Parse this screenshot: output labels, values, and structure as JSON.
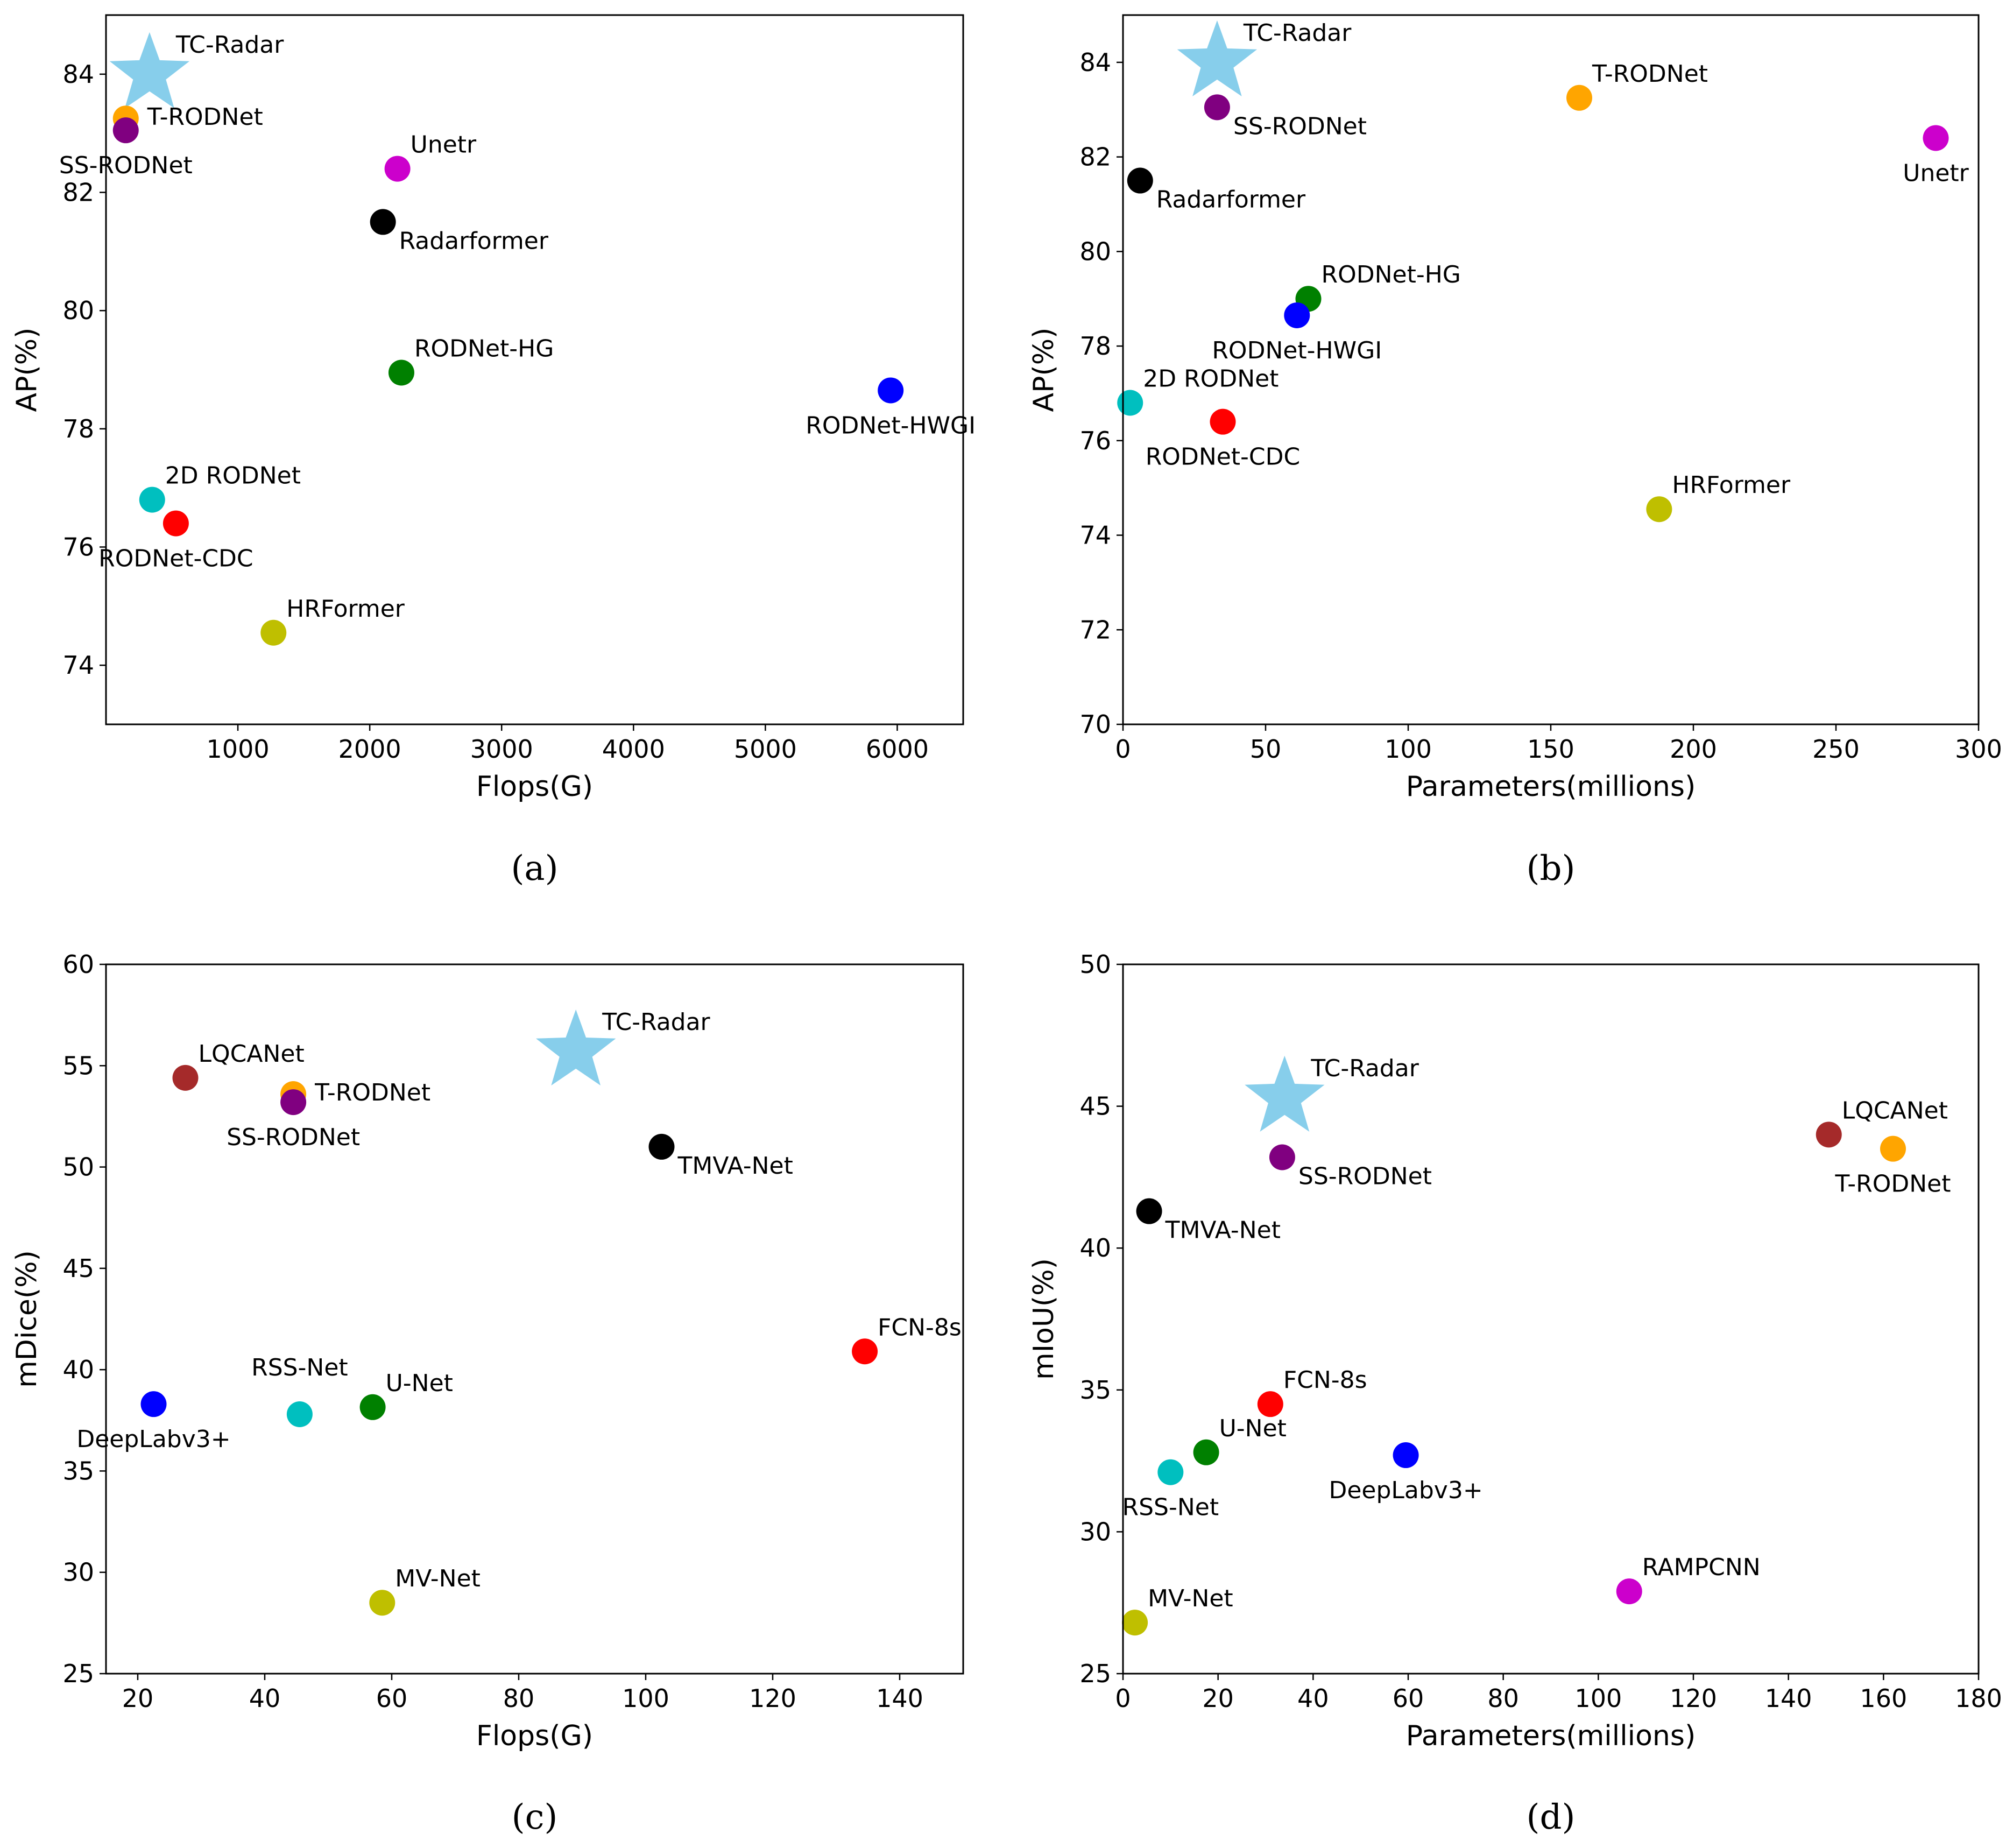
{
  "chart_data": [
    {
      "type": "scatter",
      "caption": "(a)",
      "xlabel": "Flops(G)",
      "ylabel": "AP(%)",
      "xlim": [
        0,
        6500
      ],
      "ylim": [
        73,
        85
      ],
      "xticks": [
        1000,
        2000,
        3000,
        4000,
        5000,
        6000
      ],
      "yticks": [
        74,
        76,
        78,
        80,
        82,
        84
      ],
      "points": [
        {
          "label": "TC-Radar",
          "x": 330,
          "y": 84.0,
          "color": "#87ceeb",
          "marker": "star",
          "label_pos": "upper-right"
        },
        {
          "label": "T-RODNet",
          "x": 150,
          "y": 83.25,
          "color": "#ffa500",
          "marker": "circle",
          "label_pos": "right"
        },
        {
          "label": "SS-RODNet",
          "x": 150,
          "y": 83.05,
          "color": "#800080",
          "marker": "circle",
          "label_pos": "below"
        },
        {
          "label": "Unetr",
          "x": 2210,
          "y": 82.4,
          "color": "#cc00cc",
          "marker": "circle",
          "label_pos": "upper-right"
        },
        {
          "label": "Radarformer",
          "x": 2100,
          "y": 81.5,
          "color": "#000000",
          "marker": "circle",
          "label_pos": "lower-right"
        },
        {
          "label": "RODNet-HG",
          "x": 2240,
          "y": 78.95,
          "color": "#008000",
          "marker": "circle",
          "label_pos": "upper-right"
        },
        {
          "label": "RODNet-HWGI",
          "x": 5950,
          "y": 78.65,
          "color": "#0000ff",
          "marker": "circle",
          "label_pos": "below"
        },
        {
          "label": "2D RODNet",
          "x": 350,
          "y": 76.8,
          "color": "#00bfbf",
          "marker": "circle",
          "label_pos": "upper-right"
        },
        {
          "label": "RODNet-CDC",
          "x": 530,
          "y": 76.4,
          "color": "#ff0000",
          "marker": "circle",
          "label_pos": "below"
        },
        {
          "label": "HRFormer",
          "x": 1270,
          "y": 74.55,
          "color": "#bfbf00",
          "marker": "circle",
          "label_pos": "upper-right"
        }
      ]
    },
    {
      "type": "scatter",
      "caption": "(b)",
      "xlabel": "Parameters(millions)",
      "ylabel": "AP(%)",
      "xlim": [
        0,
        300
      ],
      "ylim": [
        70,
        85
      ],
      "xticks": [
        0,
        50,
        100,
        150,
        200,
        250,
        300
      ],
      "yticks": [
        70,
        72,
        74,
        76,
        78,
        80,
        82,
        84
      ],
      "points": [
        {
          "label": "TC-Radar",
          "x": 33,
          "y": 84.0,
          "color": "#87ceeb",
          "marker": "star",
          "label_pos": "upper-right"
        },
        {
          "label": "SS-RODNet",
          "x": 33,
          "y": 83.05,
          "color": "#800080",
          "marker": "circle",
          "label_pos": "lower-right"
        },
        {
          "label": "T-RODNet",
          "x": 160,
          "y": 83.25,
          "color": "#ffa500",
          "marker": "circle",
          "label_pos": "upper-right"
        },
        {
          "label": "Unetr",
          "x": 285,
          "y": 82.4,
          "color": "#cc00cc",
          "marker": "circle",
          "label_pos": "below"
        },
        {
          "label": "Radarformer",
          "x": 6,
          "y": 81.5,
          "color": "#000000",
          "marker": "circle",
          "label_pos": "lower-right"
        },
        {
          "label": "RODNet-HG",
          "x": 65,
          "y": 79.0,
          "color": "#008000",
          "marker": "circle",
          "label_pos": "upper-right"
        },
        {
          "label": "RODNet-HWGI",
          "x": 61,
          "y": 78.65,
          "color": "#0000ff",
          "marker": "circle",
          "label_pos": "below"
        },
        {
          "label": "2D RODNet",
          "x": 2.5,
          "y": 76.8,
          "color": "#00bfbf",
          "marker": "circle",
          "label_pos": "upper-right"
        },
        {
          "label": "RODNet-CDC",
          "x": 35,
          "y": 76.4,
          "color": "#ff0000",
          "marker": "circle",
          "label_pos": "below"
        },
        {
          "label": "HRFormer",
          "x": 188,
          "y": 74.55,
          "color": "#bfbf00",
          "marker": "circle",
          "label_pos": "upper-right"
        }
      ]
    },
    {
      "type": "scatter",
      "caption": "(c)",
      "xlabel": "Flops(G)",
      "ylabel": "mDice(%)",
      "xlim": [
        15,
        150
      ],
      "ylim": [
        25,
        60
      ],
      "xticks": [
        20,
        40,
        60,
        80,
        100,
        120,
        140
      ],
      "yticks": [
        25,
        30,
        35,
        40,
        45,
        50,
        55,
        60
      ],
      "points": [
        {
          "label": "TC-Radar",
          "x": 89,
          "y": 55.7,
          "color": "#87ceeb",
          "marker": "star",
          "label_pos": "upper-right"
        },
        {
          "label": "LQCANet",
          "x": 27.5,
          "y": 54.4,
          "color": "#a52a2a",
          "marker": "circle",
          "label_pos": "upper-right"
        },
        {
          "label": "T-RODNet",
          "x": 44.5,
          "y": 53.6,
          "color": "#ffa500",
          "marker": "circle",
          "label_pos": "right"
        },
        {
          "label": "SS-RODNet",
          "x": 44.5,
          "y": 53.2,
          "color": "#800080",
          "marker": "circle",
          "label_pos": "below"
        },
        {
          "label": "TMVA-Net",
          "x": 102.5,
          "y": 51.0,
          "color": "#000000",
          "marker": "circle",
          "label_pos": "lower-right"
        },
        {
          "label": "FCN-8s",
          "x": 134.5,
          "y": 40.9,
          "color": "#ff0000",
          "marker": "circle",
          "label_pos": "upper-right"
        },
        {
          "label": "DeepLabv3+",
          "x": 22.5,
          "y": 38.3,
          "color": "#0000ff",
          "marker": "circle",
          "label_pos": "below"
        },
        {
          "label": "RSS-Net",
          "x": 45.5,
          "y": 37.8,
          "color": "#00bfbf",
          "marker": "circle",
          "label_pos": "above"
        },
        {
          "label": "U-Net",
          "x": 57,
          "y": 38.15,
          "color": "#008000",
          "marker": "circle",
          "label_pos": "upper-right"
        },
        {
          "label": "MV-Net",
          "x": 58.5,
          "y": 28.5,
          "color": "#bfbf00",
          "marker": "circle",
          "label_pos": "upper-right"
        }
      ]
    },
    {
      "type": "scatter",
      "caption": "(d)",
      "xlabel": "Parameters(millions)",
      "ylabel": "mIoU(%)",
      "xlim": [
        0,
        180
      ],
      "ylim": [
        25,
        50
      ],
      "xticks": [
        0,
        20,
        40,
        60,
        80,
        100,
        120,
        140,
        160,
        180
      ],
      "yticks": [
        25,
        30,
        35,
        40,
        45,
        50
      ],
      "points": [
        {
          "label": "TC-Radar",
          "x": 34,
          "y": 45.3,
          "color": "#87ceeb",
          "marker": "star",
          "label_pos": "upper-right"
        },
        {
          "label": "SS-RODNet",
          "x": 33.5,
          "y": 43.2,
          "color": "#800080",
          "marker": "circle",
          "label_pos": "lower-right"
        },
        {
          "label": "LQCANet",
          "x": 148.5,
          "y": 44.0,
          "color": "#a52a2a",
          "marker": "circle",
          "label_pos": "upper-right"
        },
        {
          "label": "T-RODNet",
          "x": 162,
          "y": 43.5,
          "color": "#ffa500",
          "marker": "circle",
          "label_pos": "below"
        },
        {
          "label": "TMVA-Net",
          "x": 5.5,
          "y": 41.3,
          "color": "#000000",
          "marker": "circle",
          "label_pos": "lower-right"
        },
        {
          "label": "FCN-8s",
          "x": 31,
          "y": 34.5,
          "color": "#ff0000",
          "marker": "circle",
          "label_pos": "upper-right"
        },
        {
          "label": "U-Net",
          "x": 17.5,
          "y": 32.8,
          "color": "#008000",
          "marker": "circle",
          "label_pos": "upper-right"
        },
        {
          "label": "RSS-Net",
          "x": 10,
          "y": 32.1,
          "color": "#00bfbf",
          "marker": "circle",
          "label_pos": "below"
        },
        {
          "label": "DeepLabv3+",
          "x": 59.5,
          "y": 32.7,
          "color": "#0000ff",
          "marker": "circle",
          "label_pos": "below"
        },
        {
          "label": "RAMPCNN",
          "x": 106.5,
          "y": 27.9,
          "color": "#cc00cc",
          "marker": "circle",
          "label_pos": "upper-right"
        },
        {
          "label": "MV-Net",
          "x": 2.5,
          "y": 26.8,
          "color": "#bfbf00",
          "marker": "circle",
          "label_pos": "upper-right"
        }
      ]
    }
  ]
}
